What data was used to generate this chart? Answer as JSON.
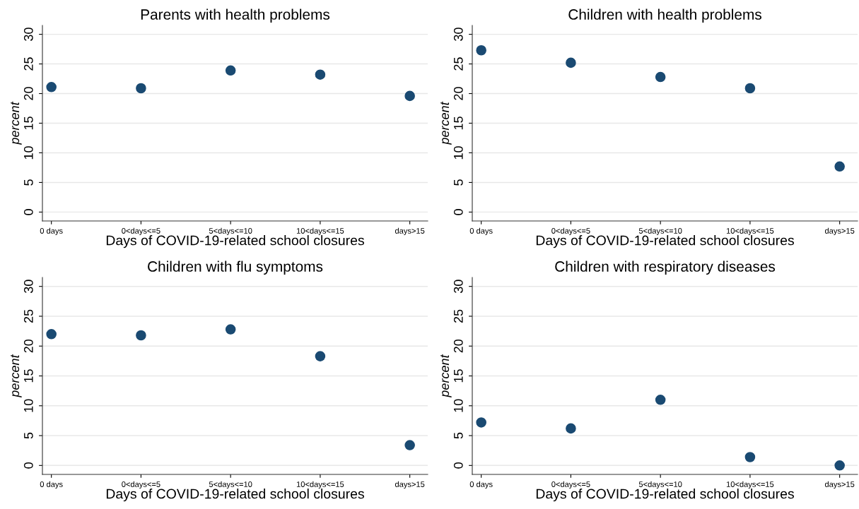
{
  "chart_data": [
    {
      "type": "scatter",
      "title": "Parents with health problems",
      "xlabel": "Days of COVID-19-related school closures",
      "ylabel": "percent",
      "categories": [
        "0 days",
        "0<days<=5",
        "5<days<=10",
        "10<days<=15",
        "days>15"
      ],
      "series": [
        {
          "color": "#1a4a72",
          "values": [
            21.1,
            20.9,
            23.9,
            23.2,
            19.6
          ]
        }
      ],
      "ylim": [
        -1.5,
        31.5
      ],
      "yticks": [
        0,
        5,
        10,
        15,
        20,
        25,
        30
      ],
      "grid": "y",
      "marker": "circle"
    },
    {
      "type": "scatter",
      "title": "Children with health problems",
      "xlabel": "Days of COVID-19-related school closures",
      "ylabel": "percent",
      "categories": [
        "0 days",
        "0<days<=5",
        "5<days<=10",
        "10<days<=15",
        "days>15"
      ],
      "series": [
        {
          "color": "#1a4a72",
          "values": [
            27.3,
            25.2,
            22.8,
            20.9,
            7.7
          ]
        }
      ],
      "ylim": [
        -1.5,
        31.5
      ],
      "yticks": [
        0,
        5,
        10,
        15,
        20,
        25,
        30
      ],
      "grid": "y",
      "marker": "circle"
    },
    {
      "type": "scatter",
      "title": "Children with flu symptoms",
      "xlabel": "Days of COVID-19-related school closures",
      "ylabel": "percent",
      "categories": [
        "0 days",
        "0<days<=5",
        "5<days<=10",
        "10<days<=15",
        "days>15"
      ],
      "series": [
        {
          "color": "#1a4a72",
          "values": [
            22.0,
            21.8,
            22.8,
            18.3,
            3.4
          ]
        }
      ],
      "ylim": [
        -1.5,
        31.5
      ],
      "yticks": [
        0,
        5,
        10,
        15,
        20,
        25,
        30
      ],
      "grid": "y",
      "marker": "circle"
    },
    {
      "type": "scatter",
      "title": "Children with respiratory diseases",
      "xlabel": "Days of COVID-19-related school closures",
      "ylabel": "percent",
      "categories": [
        "0 days",
        "0<days<=5",
        "5<days<=10",
        "10<days<=15",
        "days>15"
      ],
      "series": [
        {
          "color": "#1a4a72",
          "values": [
            7.2,
            6.2,
            11.0,
            1.4,
            0.0
          ]
        }
      ],
      "ylim": [
        -1.5,
        31.5
      ],
      "yticks": [
        0,
        5,
        10,
        15,
        20,
        25,
        30
      ],
      "grid": "y",
      "marker": "circle"
    }
  ]
}
